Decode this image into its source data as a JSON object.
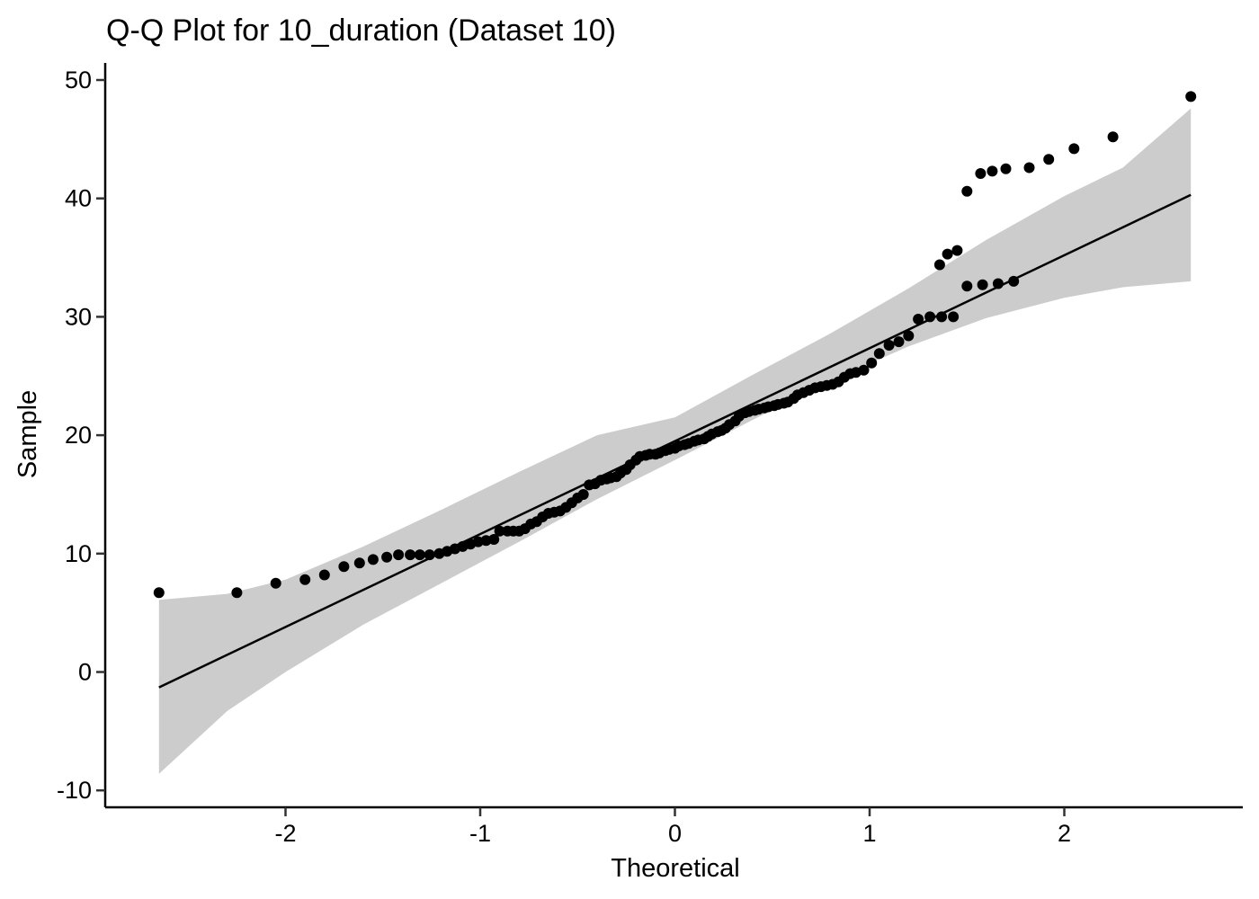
{
  "chart_data": {
    "type": "scatter",
    "title": "Q-Q Plot for 10_duration (Dataset 10)",
    "xlabel": "Theoretical",
    "ylabel": "Sample",
    "xlim": [
      -2.65,
      2.65
    ],
    "ylim": [
      -10,
      50
    ],
    "xticks": [
      -2,
      -1,
      0,
      1,
      2
    ],
    "yticks": [
      -10,
      0,
      10,
      20,
      30,
      40,
      50
    ],
    "xtick_labels": [
      "-2",
      "-1",
      "0",
      "1",
      "2"
    ],
    "ytick_labels": [
      "-10",
      "0",
      "10",
      "20",
      "30",
      "40",
      "50"
    ],
    "grid": false,
    "legend": "none",
    "reference_line": {
      "x": [
        -2.65,
        2.65
      ],
      "y": [
        -1.3,
        40.3
      ]
    },
    "confidence_band": {
      "x": [
        -2.65,
        -2.3,
        -2.0,
        -1.6,
        -1.2,
        -0.8,
        -0.4,
        0.0,
        0.4,
        0.8,
        1.2,
        1.6,
        2.0,
        2.3,
        2.65
      ],
      "lower": [
        -8.6,
        -3.3,
        0.0,
        4.0,
        7.5,
        11.0,
        14.6,
        17.9,
        21.3,
        24.6,
        27.5,
        29.9,
        31.6,
        32.5,
        33.0
      ],
      "upper": [
        6.1,
        6.6,
        7.8,
        10.6,
        13.7,
        16.9,
        20.0,
        21.5,
        25.1,
        28.6,
        32.4,
        36.5,
        40.2,
        42.6,
        47.6
      ]
    },
    "colors": {
      "points": "#000000",
      "line": "#000000",
      "band": "#cccccc"
    },
    "points": [
      [
        -2.65,
        6.7
      ],
      [
        -2.25,
        6.7
      ],
      [
        -2.05,
        7.5
      ],
      [
        -1.9,
        7.8
      ],
      [
        -1.8,
        8.2
      ],
      [
        -1.7,
        8.9
      ],
      [
        -1.62,
        9.2
      ],
      [
        -1.55,
        9.5
      ],
      [
        -1.48,
        9.7
      ],
      [
        -1.42,
        9.9
      ],
      [
        -1.36,
        9.9
      ],
      [
        -1.31,
        9.9
      ],
      [
        -1.26,
        9.9
      ],
      [
        -1.21,
        10.0
      ],
      [
        -1.17,
        10.2
      ],
      [
        -1.13,
        10.4
      ],
      [
        -1.09,
        10.6
      ],
      [
        -1.05,
        10.8
      ],
      [
        -1.01,
        11.0
      ],
      [
        -0.97,
        11.1
      ],
      [
        -0.93,
        11.2
      ],
      [
        -0.9,
        11.9
      ],
      [
        -0.86,
        11.9
      ],
      [
        -0.83,
        11.9
      ],
      [
        -0.8,
        11.9
      ],
      [
        -0.77,
        12.1
      ],
      [
        -0.74,
        12.5
      ],
      [
        -0.71,
        12.7
      ],
      [
        -0.68,
        13.1
      ],
      [
        -0.65,
        13.4
      ],
      [
        -0.62,
        13.5
      ],
      [
        -0.59,
        13.6
      ],
      [
        -0.56,
        13.9
      ],
      [
        -0.53,
        14.3
      ],
      [
        -0.5,
        14.7
      ],
      [
        -0.47,
        15.0
      ],
      [
        -0.44,
        15.8
      ],
      [
        -0.41,
        15.9
      ],
      [
        -0.38,
        16.2
      ],
      [
        -0.35,
        16.3
      ],
      [
        -0.33,
        16.4
      ],
      [
        -0.3,
        16.5
      ],
      [
        -0.28,
        16.8
      ],
      [
        -0.25,
        17.1
      ],
      [
        -0.23,
        17.5
      ],
      [
        -0.2,
        17.9
      ],
      [
        -0.18,
        18.2
      ],
      [
        -0.15,
        18.3
      ],
      [
        -0.13,
        18.4
      ],
      [
        -0.1,
        18.4
      ],
      [
        -0.08,
        18.5
      ],
      [
        -0.05,
        18.7
      ],
      [
        -0.03,
        18.8
      ],
      [
        0.0,
        18.9
      ],
      [
        0.02,
        19.1
      ],
      [
        0.05,
        19.2
      ],
      [
        0.07,
        19.3
      ],
      [
        0.1,
        19.5
      ],
      [
        0.12,
        19.6
      ],
      [
        0.15,
        19.7
      ],
      [
        0.17,
        19.9
      ],
      [
        0.19,
        20.1
      ],
      [
        0.22,
        20.3
      ],
      [
        0.24,
        20.4
      ],
      [
        0.26,
        20.6
      ],
      [
        0.28,
        20.9
      ],
      [
        0.31,
        21.2
      ],
      [
        0.33,
        21.6
      ],
      [
        0.36,
        21.9
      ],
      [
        0.38,
        22.0
      ],
      [
        0.41,
        22.1
      ],
      [
        0.43,
        22.2
      ],
      [
        0.46,
        22.3
      ],
      [
        0.48,
        22.4
      ],
      [
        0.51,
        22.5
      ],
      [
        0.53,
        22.6
      ],
      [
        0.56,
        22.7
      ],
      [
        0.58,
        22.8
      ],
      [
        0.61,
        23.1
      ],
      [
        0.63,
        23.4
      ],
      [
        0.66,
        23.6
      ],
      [
        0.69,
        23.8
      ],
      [
        0.72,
        24.0
      ],
      [
        0.75,
        24.1
      ],
      [
        0.78,
        24.2
      ],
      [
        0.81,
        24.3
      ],
      [
        0.84,
        24.5
      ],
      [
        0.87,
        24.9
      ],
      [
        0.9,
        25.2
      ],
      [
        0.93,
        25.3
      ],
      [
        0.97,
        25.5
      ],
      [
        1.01,
        26.1
      ],
      [
        1.05,
        26.9
      ],
      [
        1.1,
        27.6
      ],
      [
        1.15,
        27.9
      ],
      [
        1.2,
        28.4
      ],
      [
        1.25,
        29.8
      ],
      [
        1.31,
        30.0
      ],
      [
        1.37,
        30.0
      ],
      [
        1.43,
        30.0
      ],
      [
        1.5,
        32.6
      ],
      [
        1.58,
        32.7
      ],
      [
        1.66,
        32.8
      ],
      [
        1.74,
        33.0
      ],
      [
        1.36,
        34.4
      ],
      [
        1.4,
        35.3
      ],
      [
        1.45,
        35.6
      ],
      [
        1.5,
        40.6
      ],
      [
        1.57,
        42.1
      ],
      [
        1.63,
        42.3
      ],
      [
        1.7,
        42.5
      ],
      [
        1.82,
        42.6
      ],
      [
        1.92,
        43.3
      ],
      [
        2.05,
        44.2
      ],
      [
        2.25,
        45.2
      ],
      [
        2.65,
        48.6
      ]
    ]
  }
}
